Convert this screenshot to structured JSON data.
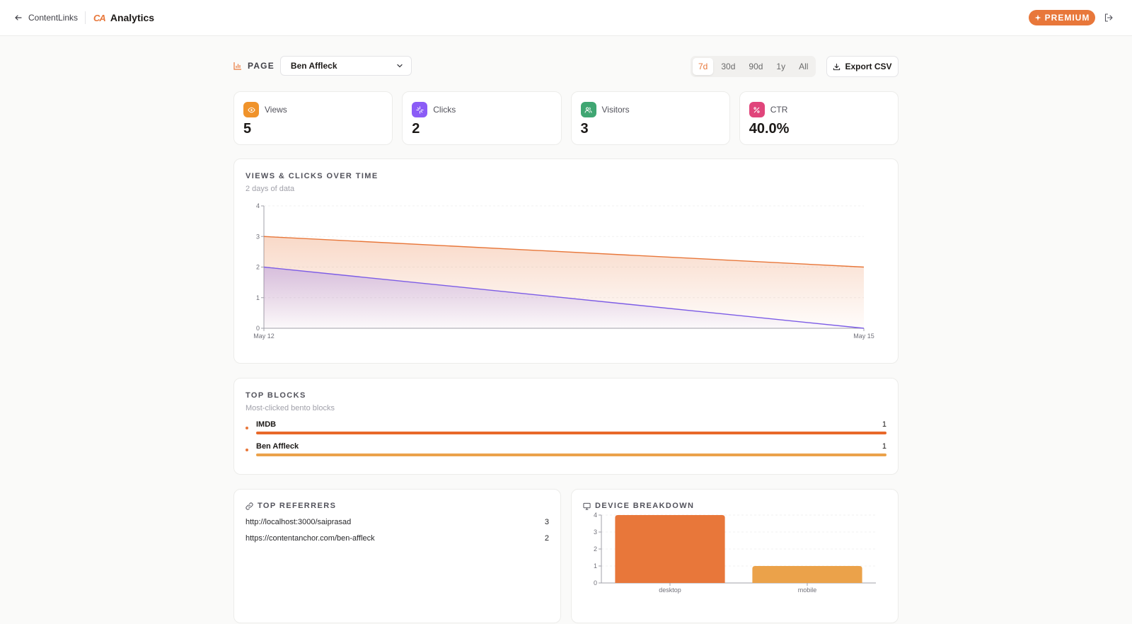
{
  "header": {
    "back_label": "ContentLinks",
    "logo_text": "CA",
    "title": "Analytics",
    "premium_label": "PREMIUM"
  },
  "filters": {
    "page_label": "PAGE",
    "page_selected": "Ben Affleck",
    "ranges": [
      "7d",
      "30d",
      "90d",
      "1y",
      "All"
    ],
    "active_range": "7d",
    "export_label": "Export CSV"
  },
  "stats": [
    {
      "label": "Views",
      "value": "5",
      "icon": "eye-icon",
      "color": "#f0932b"
    },
    {
      "label": "Clicks",
      "value": "2",
      "icon": "sparkle-icon",
      "color": "#8b5cf6"
    },
    {
      "label": "Visitors",
      "value": "3",
      "icon": "users-icon",
      "color": "#3fa672"
    },
    {
      "label": "CTR",
      "value": "40.0%",
      "icon": "percent-icon",
      "color": "#e0457b"
    }
  ],
  "timeline": {
    "title": "VIEWS & CLICKS OVER TIME",
    "subtitle": "2 days of data"
  },
  "top_blocks": {
    "title": "TOP BLOCKS",
    "subtitle": "Most-clicked bento blocks",
    "items": [
      {
        "label": "IMDB",
        "value": "1",
        "share": 1.0,
        "color": "#e8692a"
      },
      {
        "label": "Ben Affleck",
        "value": "1",
        "share": 1.0,
        "color": "#eba24a"
      }
    ]
  },
  "referrers": {
    "title": "TOP REFERRERS",
    "items": [
      {
        "url": "http://localhost:3000/saiprasad",
        "count": "3"
      },
      {
        "url": "https://contentanchor.com/ben-affleck",
        "count": "2"
      }
    ]
  },
  "devices": {
    "title": "DEVICE BREAKDOWN"
  },
  "chart_data": [
    {
      "type": "area",
      "x": [
        "May 12",
        "May 15"
      ],
      "series": [
        {
          "name": "Views",
          "values": [
            3,
            2
          ],
          "color": "#e8773a"
        },
        {
          "name": "Clicks",
          "values": [
            2,
            0
          ],
          "color": "#7c5ce6"
        }
      ],
      "ylim": [
        0,
        4
      ],
      "yticks": [
        0,
        1,
        2,
        3,
        4
      ],
      "grid": true
    },
    {
      "type": "bar",
      "categories": [
        "desktop",
        "mobile"
      ],
      "values": [
        4,
        1
      ],
      "colors": [
        "#e8773a",
        "#eba24a"
      ],
      "ylim": [
        0,
        4
      ],
      "yticks": [
        0,
        1,
        2,
        3,
        4
      ],
      "grid": true
    }
  ]
}
